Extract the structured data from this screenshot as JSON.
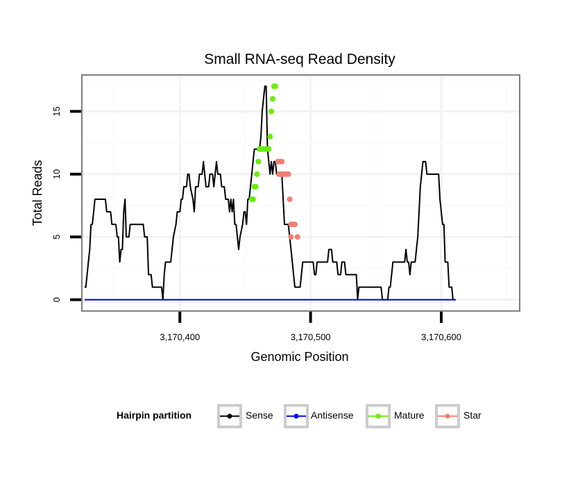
{
  "chart_data": {
    "type": "line",
    "title": "Small RNA-seq Read Density",
    "xlabel": "Genomic Position",
    "ylabel": "Total Reads",
    "xlim": [
      3170325,
      3170660
    ],
    "ylim": [
      -0.9,
      17.9
    ],
    "xticks": [
      3170400,
      3170500,
      3170600
    ],
    "xtick_labels": [
      "3,170,400",
      "3,170,500",
      "3,170,600"
    ],
    "yticks": [
      0,
      5,
      10,
      15
    ],
    "ytick_labels": [
      "0",
      "5",
      "10",
      "15"
    ],
    "grid": true,
    "legend": {
      "title": "Hairpin partition",
      "position": "bottom",
      "entries": [
        "Sense",
        "Antisense",
        "Mature",
        "Star"
      ]
    },
    "series": [
      {
        "name": "Sense",
        "color": "#000000",
        "style": "step-line",
        "points": [
          [
            3170327,
            1
          ],
          [
            3170328,
            1
          ],
          [
            3170330,
            3
          ],
          [
            3170331,
            4
          ],
          [
            3170332,
            6
          ],
          [
            3170333,
            6
          ],
          [
            3170334,
            7
          ],
          [
            3170335,
            8
          ],
          [
            3170336,
            8
          ],
          [
            3170343,
            8
          ],
          [
            3170344,
            7
          ],
          [
            3170347,
            7
          ],
          [
            3170348,
            6
          ],
          [
            3170351,
            6
          ],
          [
            3170352,
            5
          ],
          [
            3170353,
            5
          ],
          [
            3170354,
            3
          ],
          [
            3170355,
            4
          ],
          [
            3170356,
            4
          ],
          [
            3170357,
            7
          ],
          [
            3170358,
            8
          ],
          [
            3170359,
            5
          ],
          [
            3170361,
            5
          ],
          [
            3170362,
            6
          ],
          [
            3170367,
            6
          ],
          [
            3170368,
            6
          ],
          [
            3170372,
            6
          ],
          [
            3170373,
            5
          ],
          [
            3170375,
            5
          ],
          [
            3170376,
            2
          ],
          [
            3170378,
            2
          ],
          [
            3170379,
            1
          ],
          [
            3170386,
            1
          ],
          [
            3170387,
            0
          ],
          [
            3170388,
            2
          ],
          [
            3170389,
            3
          ],
          [
            3170393,
            3
          ],
          [
            3170394,
            4
          ],
          [
            3170395,
            5
          ],
          [
            3170397,
            6
          ],
          [
            3170398,
            7
          ],
          [
            3170400,
            7
          ],
          [
            3170401,
            8
          ],
          [
            3170402,
            8
          ],
          [
            3170403,
            9
          ],
          [
            3170405,
            9
          ],
          [
            3170406,
            10
          ],
          [
            3170407,
            10
          ],
          [
            3170408,
            9
          ],
          [
            3170410,
            8
          ],
          [
            3170411,
            7
          ],
          [
            3170412,
            9
          ],
          [
            3170414,
            9
          ],
          [
            3170415,
            10
          ],
          [
            3170417,
            10
          ],
          [
            3170418,
            11
          ],
          [
            3170419,
            10
          ],
          [
            3170420,
            9
          ],
          [
            3170422,
            9
          ],
          [
            3170423,
            10
          ],
          [
            3170425,
            10
          ],
          [
            3170426,
            9
          ],
          [
            3170427,
            10
          ],
          [
            3170428,
            11
          ],
          [
            3170429,
            10
          ],
          [
            3170431,
            10
          ],
          [
            3170432,
            9
          ],
          [
            3170434,
            9
          ],
          [
            3170435,
            8
          ],
          [
            3170437,
            8
          ],
          [
            3170438,
            7
          ],
          [
            3170439,
            8
          ],
          [
            3170440,
            7
          ],
          [
            3170441,
            8
          ],
          [
            3170442,
            6
          ],
          [
            3170443,
            6
          ],
          [
            3170444,
            5
          ],
          [
            3170445,
            4
          ],
          [
            3170446,
            5
          ],
          [
            3170448,
            6
          ],
          [
            3170449,
            7
          ],
          [
            3170450,
            7
          ],
          [
            3170451,
            6
          ],
          [
            3170452,
            8
          ],
          [
            3170453,
            8
          ],
          [
            3170454,
            9
          ],
          [
            3170455,
            10
          ],
          [
            3170456,
            11
          ],
          [
            3170457,
            12
          ],
          [
            3170461,
            12
          ],
          [
            3170462,
            13
          ],
          [
            3170463,
            15
          ],
          [
            3170464,
            16
          ],
          [
            3170465,
            17
          ],
          [
            3170466,
            17
          ],
          [
            3170467,
            12
          ],
          [
            3170468,
            11
          ],
          [
            3170469,
            10
          ],
          [
            3170470,
            11
          ],
          [
            3170471,
            10
          ],
          [
            3170472,
            11
          ],
          [
            3170473,
            11
          ],
          [
            3170474,
            10
          ],
          [
            3170478,
            10
          ],
          [
            3170479,
            8
          ],
          [
            3170480,
            6
          ],
          [
            3170483,
            6
          ],
          [
            3170484,
            5
          ],
          [
            3170485,
            4
          ],
          [
            3170486,
            3
          ],
          [
            3170487,
            2
          ],
          [
            3170488,
            1
          ],
          [
            3170492,
            1
          ],
          [
            3170493,
            2
          ],
          [
            3170494,
            3
          ],
          [
            3170502,
            3
          ],
          [
            3170503,
            2
          ],
          [
            3170504,
            2
          ],
          [
            3170505,
            3
          ],
          [
            3170513,
            3
          ],
          [
            3170514,
            4
          ],
          [
            3170516,
            4
          ],
          [
            3170517,
            3
          ],
          [
            3170520,
            3
          ],
          [
            3170521,
            2
          ],
          [
            3170523,
            2
          ],
          [
            3170524,
            3
          ],
          [
            3170526,
            3
          ],
          [
            3170527,
            2
          ],
          [
            3170535,
            2
          ],
          [
            3170536,
            0
          ],
          [
            3170537,
            1
          ],
          [
            3170554,
            1
          ],
          [
            3170555,
            0
          ],
          [
            3170559,
            0
          ],
          [
            3170560,
            1
          ],
          [
            3170561,
            1
          ],
          [
            3170562,
            2
          ],
          [
            3170563,
            3
          ],
          [
            3170572,
            3
          ],
          [
            3170573,
            4
          ],
          [
            3170574,
            3
          ],
          [
            3170575,
            3
          ],
          [
            3170576,
            2
          ],
          [
            3170577,
            3
          ],
          [
            3170580,
            3
          ],
          [
            3170582,
            5
          ],
          [
            3170583,
            7
          ],
          [
            3170584,
            9
          ],
          [
            3170585,
            10
          ],
          [
            3170586,
            11
          ],
          [
            3170588,
            11
          ],
          [
            3170589,
            10
          ],
          [
            3170598,
            10
          ],
          [
            3170599,
            8
          ],
          [
            3170600,
            7
          ],
          [
            3170601,
            6
          ],
          [
            3170602,
            6
          ],
          [
            3170603,
            3
          ],
          [
            3170605,
            3
          ],
          [
            3170606,
            1
          ],
          [
            3170608,
            1
          ],
          [
            3170609,
            0
          ],
          [
            3170611,
            0
          ]
        ]
      },
      {
        "name": "Antisense",
        "color": "#0000ff",
        "style": "line",
        "points": [
          [
            3170327,
            0
          ],
          [
            3170611,
            0
          ]
        ]
      },
      {
        "name": "Mature",
        "color": "#66ee00",
        "style": "points",
        "points": [
          [
            3170455,
            8
          ],
          [
            3170456,
            8
          ],
          [
            3170457,
            9
          ],
          [
            3170458,
            9
          ],
          [
            3170459,
            10
          ],
          [
            3170460,
            11
          ],
          [
            3170461,
            12
          ],
          [
            3170462,
            12
          ],
          [
            3170463,
            12
          ],
          [
            3170464,
            12
          ],
          [
            3170465,
            12
          ],
          [
            3170466,
            12
          ],
          [
            3170467,
            12
          ],
          [
            3170468,
            12
          ],
          [
            3170469,
            13
          ],
          [
            3170470,
            15
          ],
          [
            3170471,
            16
          ],
          [
            3170472,
            17
          ],
          [
            3170473,
            17
          ]
        ]
      },
      {
        "name": "Star",
        "color": "#f07f72",
        "style": "points",
        "points": [
          [
            3170475,
            11
          ],
          [
            3170476,
            11
          ],
          [
            3170477,
            11
          ],
          [
            3170478,
            11
          ],
          [
            3170476,
            10
          ],
          [
            3170477,
            10
          ],
          [
            3170478,
            10
          ],
          [
            3170479,
            10
          ],
          [
            3170480,
            10
          ],
          [
            3170481,
            10
          ],
          [
            3170482,
            10
          ],
          [
            3170483,
            10
          ],
          [
            3170484,
            8
          ],
          [
            3170485,
            6
          ],
          [
            3170486,
            6
          ],
          [
            3170487,
            6
          ],
          [
            3170488,
            6
          ],
          [
            3170485,
            5
          ],
          [
            3170490,
            5
          ]
        ]
      }
    ]
  }
}
